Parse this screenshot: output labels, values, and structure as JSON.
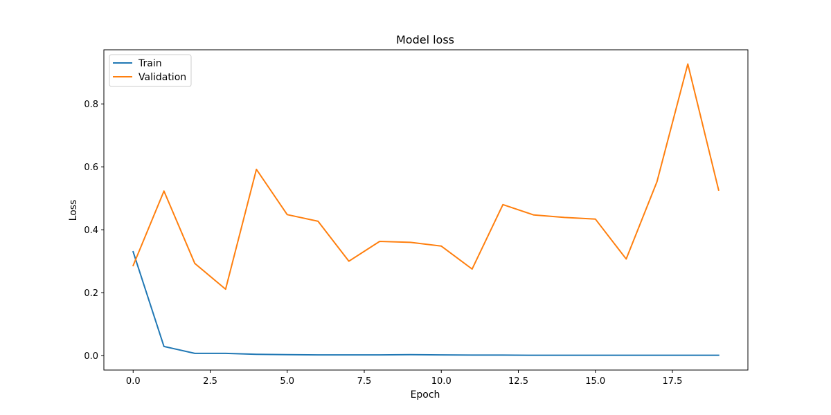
{
  "chart_data": {
    "type": "line",
    "title": "Model loss",
    "xlabel": "Epoch",
    "ylabel": "Loss",
    "x": [
      0,
      1,
      2,
      3,
      4,
      5,
      6,
      7,
      8,
      9,
      10,
      11,
      12,
      13,
      14,
      15,
      16,
      17,
      18,
      19
    ],
    "xlim": [
      -0.95,
      19.95
    ],
    "ylim": [
      -0.046,
      0.972
    ],
    "xticks": [
      0.0,
      2.5,
      5.0,
      7.5,
      10.0,
      12.5,
      15.0,
      17.5
    ],
    "xtick_labels": [
      "0.0",
      "2.5",
      "5.0",
      "7.5",
      "10.0",
      "12.5",
      "15.0",
      "17.5"
    ],
    "yticks": [
      0.0,
      0.2,
      0.4,
      0.6,
      0.8
    ],
    "ytick_labels": [
      "0.0",
      "0.2",
      "0.4",
      "0.6",
      "0.8"
    ],
    "grid": false,
    "legend_position": "top-left",
    "series": [
      {
        "name": "Train",
        "color": "#1f77b4",
        "values": [
          0.33,
          0.029,
          0.007,
          0.007,
          0.004,
          0.003,
          0.002,
          0.002,
          0.002,
          0.003,
          0.002,
          0.0015,
          0.0015,
          0.001,
          0.001,
          0.001,
          0.001,
          0.001,
          0.001,
          0.001
        ]
      },
      {
        "name": "Validation",
        "color": "#ff7f0e",
        "values": [
          0.286,
          0.523,
          0.293,
          0.211,
          0.592,
          0.448,
          0.427,
          0.3,
          0.363,
          0.36,
          0.348,
          0.275,
          0.48,
          0.447,
          0.439,
          0.434,
          0.307,
          0.553,
          0.927,
          0.526
        ]
      }
    ]
  }
}
